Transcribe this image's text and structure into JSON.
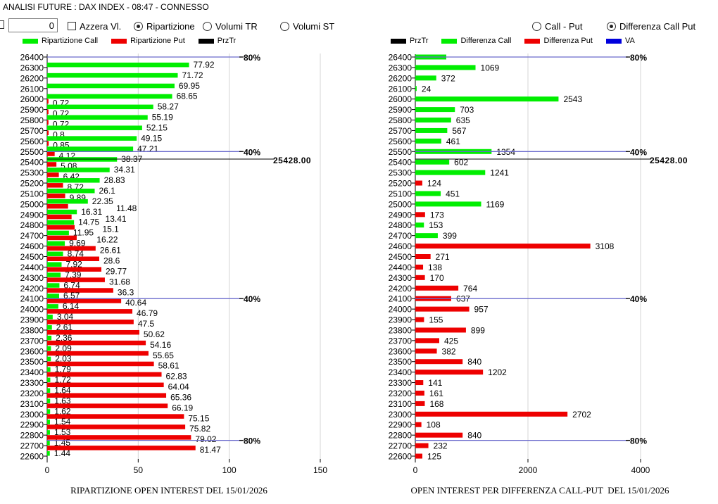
{
  "window_title": "ANALISI FUTURE : DAX INDEX - 08:47 - CONNESSO",
  "controls": {
    "number_input_value": "0",
    "azzera_label": "Azzera Vl.",
    "radio_left": [
      {
        "label": "Ripartizione",
        "selected": true
      },
      {
        "label": "Volumi TR",
        "selected": false
      },
      {
        "label": "Volumi ST",
        "selected": false
      }
    ],
    "radio_right": [
      {
        "label": "Call - Put",
        "selected": false
      },
      {
        "label": "Differenza Call Put",
        "selected": true
      }
    ]
  },
  "colors": {
    "call": "#00ee00",
    "put": "#ee0000",
    "przTr": "#000000",
    "va": "#0000dd",
    "level_line": "#6a6acc",
    "grid": "#d4d4d4"
  },
  "chart_data": [
    {
      "type": "bar",
      "orientation": "horizontal",
      "title": "RIPARTIZIONE OPEN INTEREST DEL 15/01/2026",
      "legend": [
        {
          "label": "Ripartizione Call",
          "color": "#00ee00"
        },
        {
          "label": "Ripartizione Put",
          "color": "#ee0000"
        },
        {
          "label": "PrzTr",
          "color": "#000000"
        }
      ],
      "legend_placement": "top",
      "categories": [
        26400,
        26300,
        26200,
        26100,
        26000,
        25900,
        25800,
        25700,
        25600,
        25500,
        25400,
        25300,
        25200,
        25100,
        25000,
        24900,
        24800,
        24700,
        24600,
        24500,
        24400,
        24300,
        24200,
        24100,
        24000,
        23900,
        23800,
        23700,
        23600,
        23500,
        23400,
        23300,
        23200,
        23100,
        23000,
        22900,
        22800,
        22700,
        22600
      ],
      "series": [
        {
          "name": "Ripartizione Call",
          "values": [
            null,
            77.92,
            71.72,
            69.95,
            68.65,
            58.27,
            55.19,
            52.15,
            49.15,
            47.21,
            38.37,
            34.31,
            28.83,
            26.1,
            22.35,
            16.31,
            14.75,
            11.95,
            9.69,
            8.74,
            7.92,
            7.39,
            6.74,
            6.57,
            6.14,
            3.04,
            2.61,
            2.36,
            2.09,
            2.03,
            1.79,
            1.72,
            1.64,
            1.63,
            1.62,
            1.54,
            1.53,
            1.45,
            1.44
          ]
        },
        {
          "name": "Ripartizione Put",
          "values": [
            null,
            null,
            null,
            null,
            0.72,
            0.72,
            0.72,
            0.8,
            0.85,
            4.12,
            5.08,
            6.42,
            8.72,
            9.89,
            11.48,
            13.41,
            15.1,
            16.22,
            26.61,
            28.6,
            29.77,
            31.68,
            36.3,
            40.64,
            46.79,
            47.5,
            50.62,
            54.16,
            55.65,
            58.61,
            62.83,
            64.04,
            65.36,
            66.19,
            75.15,
            75.82,
            79.02,
            81.47,
            null
          ]
        }
      ],
      "xlim": [
        0,
        150
      ],
      "xticks": [
        0,
        50,
        100,
        150
      ],
      "grid": true,
      "przTr": {
        "value": 25428,
        "label": "25428.00"
      },
      "levels": [
        {
          "strike": 26400,
          "label": "80%"
        },
        {
          "strike": 25500,
          "label": "40%"
        },
        {
          "strike": 24100,
          "label": "40%"
        },
        {
          "strike": 22750,
          "label": "80%"
        }
      ]
    },
    {
      "type": "bar",
      "orientation": "horizontal",
      "title": "OPEN INTEREST PER DIFFERENZA CALL-PUT  DEL 15/01/2026",
      "legend": [
        {
          "label": "PrzTr",
          "color": "#000000"
        },
        {
          "label": "Differenza Call",
          "color": "#00ee00"
        },
        {
          "label": "Differenza Put",
          "color": "#ee0000"
        },
        {
          "label": "VA",
          "color": "#0000dd"
        }
      ],
      "legend_placement": "top",
      "categories": [
        26400,
        26300,
        26200,
        26100,
        26000,
        25900,
        25800,
        25700,
        25600,
        25500,
        25400,
        25300,
        25200,
        25100,
        25000,
        24900,
        24800,
        24700,
        24600,
        24500,
        24400,
        24300,
        24200,
        24100,
        24000,
        23900,
        23800,
        23700,
        23600,
        23500,
        23400,
        23300,
        23200,
        23100,
        23000,
        22900,
        22800,
        22700,
        22600
      ],
      "values": [
        550,
        1069,
        372,
        24,
        2543,
        703,
        635,
        567,
        461,
        1354,
        602,
        1241,
        124,
        451,
        1169,
        173,
        153,
        399,
        3108,
        271,
        138,
        170,
        764,
        637,
        957,
        155,
        899,
        425,
        382,
        840,
        1202,
        141,
        161,
        168,
        2702,
        108,
        840,
        232,
        125
      ],
      "value_labels": [
        null,
        "1069",
        "372",
        "24",
        "2543",
        "703",
        "635",
        "567",
        "461",
        "1354",
        "602",
        "1241",
        "124",
        "451",
        "1169",
        "173",
        "153",
        "399",
        "3108",
        "271",
        "138",
        "170",
        "764",
        "637",
        "957",
        "155",
        "899",
        "425",
        "382",
        "840",
        "1202",
        "141",
        "161",
        "168",
        "2702",
        "108",
        "840",
        "232",
        "125"
      ],
      "side": [
        "call",
        "call",
        "call",
        "call",
        "call",
        "call",
        "call",
        "call",
        "call",
        "call",
        "call",
        "call",
        "put",
        "call",
        "call",
        "put",
        "call",
        "call",
        "put",
        "put",
        "put",
        "put",
        "put",
        "put",
        "put",
        "put",
        "put",
        "put",
        "put",
        "put",
        "put",
        "put",
        "put",
        "put",
        "put",
        "put",
        "put",
        "put",
        "put"
      ],
      "xlim": [
        0,
        4000
      ],
      "xticks": [
        0,
        2000,
        4000
      ],
      "grid": true,
      "przTr": {
        "value": 25428,
        "label": "25428.00"
      },
      "levels": [
        {
          "strike": 26400,
          "label": "80%"
        },
        {
          "strike": 25500,
          "label": "40%"
        },
        {
          "strike": 24100,
          "label": "40%"
        },
        {
          "strike": 22750,
          "label": "80%"
        }
      ]
    }
  ]
}
